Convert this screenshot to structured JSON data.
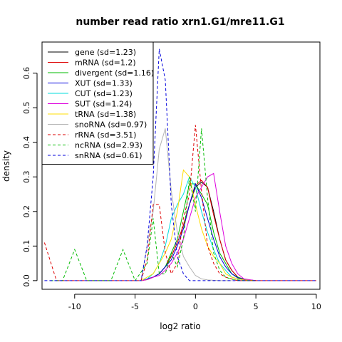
{
  "chart_data": {
    "type": "line",
    "title": "number read ratio xrn1.G1/mre11.G1",
    "xlabel": "log2 ratio",
    "ylabel": "density",
    "xlim": [
      -12.7,
      10.3
    ],
    "ylim": [
      -0.025,
      0.69
    ],
    "xticks": [
      -10,
      -5,
      0,
      5,
      10
    ],
    "yticks": [
      0.0,
      0.1,
      0.2,
      0.3,
      0.4,
      0.5,
      0.6
    ],
    "legend_position": "top-left",
    "grid": false,
    "series": [
      {
        "name": "gene (sd=1.23)",
        "color": "#000000",
        "dash": "solid",
        "x": [
          -4.5,
          -4,
          -3.5,
          -3,
          -2.5,
          -2,
          -1.5,
          -1,
          -0.5,
          0,
          0.5,
          1,
          1.5,
          2,
          2.5,
          3,
          3.5,
          4,
          5
        ],
        "y": [
          0,
          0.003,
          0.01,
          0.02,
          0.04,
          0.07,
          0.11,
          0.16,
          0.22,
          0.27,
          0.285,
          0.27,
          0.2,
          0.12,
          0.06,
          0.03,
          0.01,
          0.004,
          0
        ]
      },
      {
        "name": "mRNA (sd=1.2)",
        "color": "#dd0000",
        "dash": "solid",
        "x": [
          -4.5,
          -4,
          -3.5,
          -3,
          -2.5,
          -2,
          -1.5,
          -1,
          -0.5,
          0,
          0.5,
          1,
          1.5,
          2,
          2.5,
          3,
          3.5,
          4,
          5
        ],
        "y": [
          0,
          0.003,
          0.01,
          0.02,
          0.04,
          0.07,
          0.11,
          0.16,
          0.22,
          0.275,
          0.29,
          0.27,
          0.19,
          0.12,
          0.06,
          0.03,
          0.01,
          0.003,
          0
        ]
      },
      {
        "name": "divergent (sd=1.16)",
        "color": "#00bb00",
        "dash": "solid",
        "x": [
          -4.5,
          -4,
          -3.5,
          -3,
          -2.5,
          -2,
          -1.5,
          -1,
          -0.5,
          0,
          0.5,
          1,
          1.5,
          2,
          2.5,
          3,
          3.5,
          4,
          5
        ],
        "y": [
          0,
          0.005,
          0.01,
          0.02,
          0.04,
          0.08,
          0.12,
          0.2,
          0.28,
          0.28,
          0.25,
          0.22,
          0.14,
          0.08,
          0.05,
          0.02,
          0.01,
          0.003,
          0
        ]
      },
      {
        "name": "XUT (sd=1.33)",
        "color": "#0000dd",
        "dash": "solid",
        "x": [
          -4.5,
          -4,
          -3.5,
          -3,
          -2.5,
          -2,
          -1.5,
          -1,
          -0.5,
          0,
          0.5,
          1,
          1.5,
          2,
          2.5,
          3,
          3.5,
          4,
          5
        ],
        "y": [
          0,
          0.005,
          0.01,
          0.02,
          0.04,
          0.06,
          0.1,
          0.15,
          0.22,
          0.28,
          0.24,
          0.18,
          0.12,
          0.07,
          0.04,
          0.02,
          0.008,
          0.003,
          0
        ]
      },
      {
        "name": "CUT (sd=1.23)",
        "color": "#00dddd",
        "dash": "solid",
        "x": [
          -4.5,
          -4,
          -3.5,
          -3,
          -2.5,
          -2,
          -1.5,
          -1,
          -0.5,
          0,
          0.5,
          1,
          1.5,
          2,
          2.5,
          3,
          3.5,
          4,
          5
        ],
        "y": [
          0,
          0.005,
          0.02,
          0.05,
          0.1,
          0.18,
          0.22,
          0.25,
          0.3,
          0.27,
          0.2,
          0.14,
          0.09,
          0.05,
          0.03,
          0.01,
          0.005,
          0.002,
          0
        ]
      },
      {
        "name": "SUT (sd=1.24)",
        "color": "#dd00dd",
        "dash": "solid",
        "x": [
          -4.5,
          -4,
          -3.5,
          -3,
          -2.5,
          -2,
          -1.5,
          -1,
          -0.5,
          0,
          0.5,
          1,
          1.5,
          2,
          2.5,
          3,
          3.5,
          4,
          5
        ],
        "y": [
          0,
          0.003,
          0.01,
          0.015,
          0.03,
          0.05,
          0.08,
          0.12,
          0.18,
          0.24,
          0.27,
          0.3,
          0.31,
          0.2,
          0.1,
          0.05,
          0.02,
          0.005,
          0
        ]
      },
      {
        "name": "tRNA (sd=1.38)",
        "color": "#ffdd00",
        "dash": "solid",
        "x": [
          -4.5,
          -4,
          -3.5,
          -3,
          -2.5,
          -2,
          -1.5,
          -1,
          -0.5,
          0,
          0.5,
          1,
          1.5,
          2,
          2.5,
          3,
          3.5,
          4,
          5
        ],
        "y": [
          0,
          0.01,
          0.02,
          0.05,
          0.08,
          0.12,
          0.2,
          0.32,
          0.3,
          0.22,
          0.15,
          0.1,
          0.07,
          0.05,
          0.02,
          0.01,
          0.005,
          0.002,
          0
        ]
      },
      {
        "name": "snoRNA (sd=0.97)",
        "color": "#b4b4b4",
        "dash": "solid",
        "x": [
          -4.5,
          -4,
          -3.5,
          -3,
          -2.5,
          -2,
          -1.5,
          -1,
          -0.5,
          0,
          0.5,
          1,
          1.5,
          2,
          3
        ],
        "y": [
          0,
          0.1,
          0.2,
          0.38,
          0.44,
          0.26,
          0.14,
          0.07,
          0.04,
          0.015,
          0.005,
          0.002,
          0.001,
          0,
          0
        ]
      },
      {
        "name": "rRNA (sd=3.51)",
        "color": "#dd0000",
        "dash": "dashed",
        "x": [
          -12.5,
          -11.5,
          -11,
          -5,
          -4.5,
          -4,
          -3.5,
          -3,
          -2.5,
          -2,
          -1.5,
          -1,
          -0.5,
          0,
          0.5,
          1,
          1.5,
          2,
          2.5,
          3,
          3.5,
          4,
          5,
          10
        ],
        "y": [
          0.11,
          0,
          0,
          0,
          0,
          0.06,
          0.22,
          0.22,
          0.08,
          0.02,
          0.05,
          0.18,
          0.25,
          0.45,
          0.26,
          0.1,
          0.05,
          0.02,
          0.01,
          0.005,
          0,
          0,
          0,
          0
        ]
      },
      {
        "name": "ncRNA (sd=2.93)",
        "color": "#00bb00",
        "dash": "dashed",
        "x": [
          -12,
          -11,
          -10,
          -9,
          -8,
          -7,
          -6,
          -5,
          -4,
          -3.5,
          -3,
          -2.5,
          -2,
          -1.5,
          -1,
          -0.5,
          0,
          0.5,
          1,
          1.5,
          2,
          2.5,
          3,
          4,
          5
        ],
        "y": [
          0,
          0,
          0.09,
          0,
          0,
          0,
          0.09,
          0,
          0.05,
          0.18,
          0.02,
          0.02,
          0.08,
          0.04,
          0.12,
          0.3,
          0.2,
          0.44,
          0.24,
          0.08,
          0.03,
          0.01,
          0.004,
          0,
          0
        ]
      },
      {
        "name": "snRNA (sd=0.61)",
        "color": "#0000dd",
        "dash": "dashed",
        "x": [
          -12.5,
          -5,
          -4.5,
          -4,
          -3.5,
          -3,
          -2.5,
          -2,
          -1.5,
          -1,
          -0.5,
          0,
          1,
          2,
          3,
          5,
          10
        ],
        "y": [
          0,
          0,
          0,
          0.1,
          0.3,
          0.67,
          0.58,
          0.22,
          0.07,
          0.02,
          0,
          0,
          0,
          0,
          0,
          0,
          0
        ]
      }
    ]
  }
}
